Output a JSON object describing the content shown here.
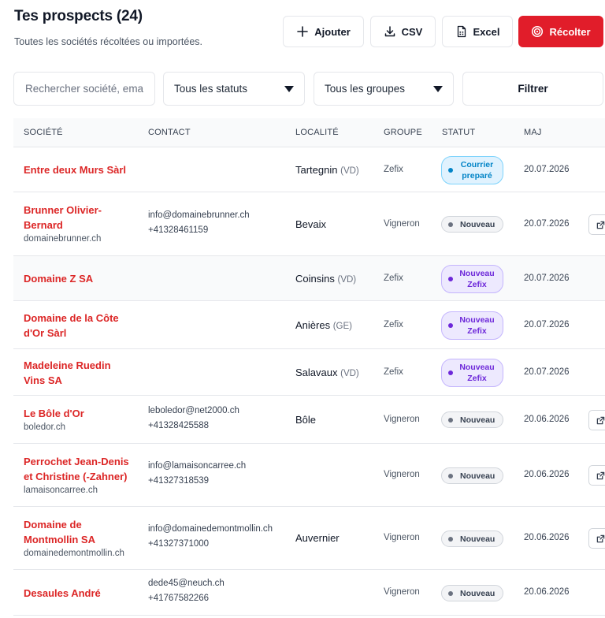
{
  "header": {
    "title": "Tes prospects (24)",
    "subtitle": "Toutes les sociétés récoltées ou importées."
  },
  "toolbar": {
    "add_label": "Ajouter",
    "csv_label": "CSV",
    "excel_label": "Excel",
    "harvest_label": "Récolter",
    "accent_color": "#e11d2a"
  },
  "filters": {
    "search_placeholder": "Rechercher société, email…",
    "status_selected": "Tous les statuts",
    "group_selected": "Tous les groupes",
    "filter_label": "Filtrer"
  },
  "table": {
    "columns": [
      "SOCIÉTÉ",
      "CONTACT",
      "LOCALITÉ",
      "GROUPE",
      "STATUT",
      "MAJ"
    ],
    "rows": [
      {
        "company_lines": [
          "Entre deux Murs Sàrl"
        ],
        "website": "",
        "email": "",
        "phone": "",
        "locality": "Tartegnin",
        "canton": "(VD)",
        "group": "Zefix",
        "status_lines": [
          "Courrier",
          "preparé"
        ],
        "status_kind": "courrier",
        "updated": "20.07.2026",
        "has_action": false
      },
      {
        "company_lines": [
          "Brunner Olivier-",
          "Bernard"
        ],
        "website": "domainebrunner.ch",
        "email": "info@domainebrunner.ch",
        "phone": "+41328461159",
        "locality": "Bevaix",
        "canton": "",
        "group": "Vigneron",
        "status_lines": [
          "Nouveau"
        ],
        "status_kind": "new",
        "updated": "20.07.2026",
        "has_action": true
      },
      {
        "company_lines": [
          "Domaine Z SA"
        ],
        "website": "",
        "email": "",
        "phone": "",
        "locality": "Coinsins",
        "canton": "(VD)",
        "group": "Zefix",
        "status_lines": [
          "Nouveau",
          "Zefix"
        ],
        "status_kind": "zefix",
        "updated": "20.07.2026",
        "has_action": false
      },
      {
        "company_lines": [
          "Domaine de la Côte",
          "d'Or Sàrl"
        ],
        "website": "",
        "email": "",
        "phone": "",
        "locality": "Anières",
        "canton": "(GE)",
        "group": "Zefix",
        "status_lines": [
          "Nouveau",
          "Zefix"
        ],
        "status_kind": "zefix",
        "updated": "20.07.2026",
        "has_action": false
      },
      {
        "company_lines": [
          "Madeleine Ruedin",
          "Vins SA"
        ],
        "website": "",
        "email": "",
        "phone": "",
        "locality": "Salavaux",
        "canton": "(VD)",
        "group": "Zefix",
        "status_lines": [
          "Nouveau",
          "Zefix"
        ],
        "status_kind": "zefix",
        "updated": "20.07.2026",
        "has_action": false
      },
      {
        "company_lines": [
          "Le Bôle d'Or"
        ],
        "website": "boledor.ch",
        "email": "leboledor@net2000.ch",
        "phone": "+41328425588",
        "locality": "Bôle",
        "canton": "",
        "group": "Vigneron",
        "status_lines": [
          "Nouveau"
        ],
        "status_kind": "new",
        "updated": "20.06.2026",
        "has_action": true
      },
      {
        "company_lines": [
          "Perrochet Jean-Denis",
          "et Christine (-Zahner)"
        ],
        "website": "lamaisoncarree.ch",
        "email": "info@lamaisoncarree.ch",
        "phone": "+41327318539",
        "locality": "",
        "canton": "",
        "group": "Vigneron",
        "status_lines": [
          "Nouveau"
        ],
        "status_kind": "new",
        "updated": "20.06.2026",
        "has_action": true
      },
      {
        "company_lines": [
          "Domaine de",
          "Montmollin SA"
        ],
        "website": "domainedemontmollin.ch",
        "email": "info@domainedemontmollin.ch",
        "phone": "+41327371000",
        "locality": "Auvernier",
        "canton": "",
        "group": "Vigneron",
        "status_lines": [
          "Nouveau"
        ],
        "status_kind": "new",
        "updated": "20.06.2026",
        "has_action": true
      },
      {
        "company_lines": [
          "Desaules André"
        ],
        "website": "",
        "email": "dede45@neuch.ch",
        "phone": "+41767582266",
        "locality": "",
        "canton": "",
        "group": "Vigneron",
        "status_lines": [
          "Nouveau"
        ],
        "status_kind": "new",
        "updated": "20.06.2026",
        "has_action": false
      }
    ]
  }
}
